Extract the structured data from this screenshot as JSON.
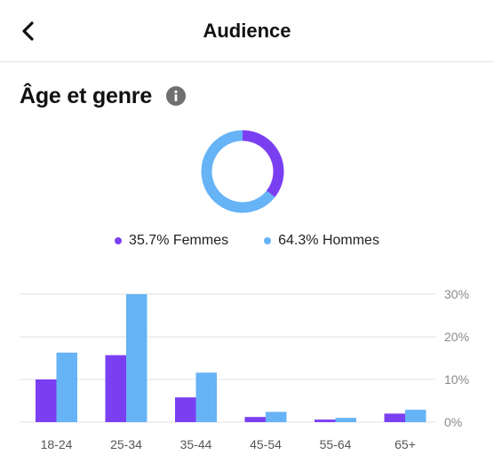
{
  "header": {
    "title": "Audience"
  },
  "section": {
    "title": "Âge et genre"
  },
  "colors": {
    "female": "#7b3ff2",
    "male": "#66b3f6",
    "grid": "#e2e2e2",
    "tick": "#8a8a8a"
  },
  "legend": {
    "female": {
      "pct": "35.7%",
      "label": "Femmes"
    },
    "male": {
      "pct": "64.3%",
      "label": "Hommes"
    }
  },
  "chart_data": [
    {
      "type": "pie",
      "categories": [
        "Femmes",
        "Hommes"
      ],
      "values": [
        35.7,
        64.3
      ]
    },
    {
      "type": "bar",
      "categories": [
        "18-24",
        "25-34",
        "35-44",
        "45-54",
        "55-64",
        "65+"
      ],
      "series": [
        {
          "name": "Femmes",
          "values": [
            10,
            15.7,
            5.8,
            1.2,
            0.6,
            2
          ]
        },
        {
          "name": "Hommes",
          "values": [
            16.3,
            30,
            11.6,
            2.4,
            1,
            2.9
          ]
        }
      ],
      "ylim": [
        0,
        30
      ],
      "yticks": [
        "0%",
        "10%",
        "20%",
        "30%"
      ],
      "grid": true
    }
  ]
}
